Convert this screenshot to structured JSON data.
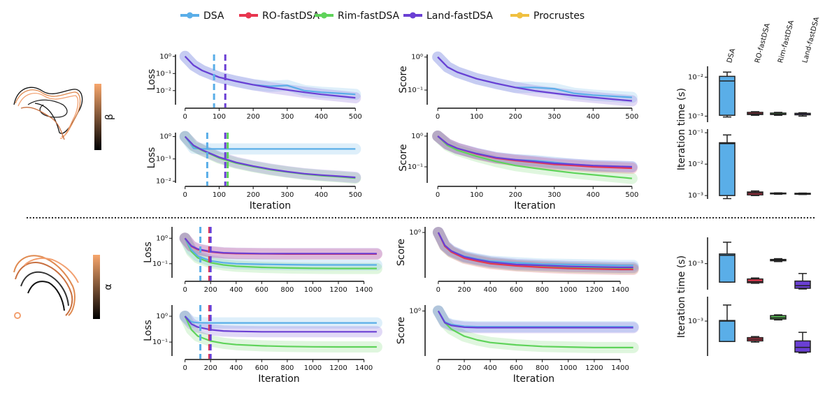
{
  "legend": [
    {
      "name": "DSA",
      "color": "#5aaee8"
    },
    {
      "name": "RO-fastDSA",
      "color": "#e8364f"
    },
    {
      "name": "Rim-fastDSA",
      "color": "#5fd35a"
    },
    {
      "name": "Land-fastDSA",
      "color": "#6a3fd4"
    },
    {
      "name": "Procrustes",
      "color": "#f0c040"
    }
  ],
  "colorbars": [
    {
      "label": "β",
      "colors": [
        "#f7a66c",
        "#000000"
      ]
    },
    {
      "label": "α",
      "colors": [
        "#f7a66c",
        "#000000"
      ]
    }
  ],
  "chart_data": [
    {
      "type": "line",
      "ylabel": "Loss",
      "log_y": true,
      "xlim": [
        -20,
        520
      ],
      "ylim": [
        0.0015,
        1.3
      ],
      "xticks": [
        0,
        100,
        200,
        300,
        400,
        500
      ],
      "yticks": [
        {
          "value": 1,
          "label": "10⁰"
        },
        {
          "value": 0.1,
          "label": "10⁻¹"
        },
        {
          "value": 0.01,
          "label": "10⁻²"
        }
      ],
      "x": [
        0,
        25,
        50,
        100,
        150,
        200,
        250,
        300,
        350,
        400,
        450,
        500
      ],
      "series": [
        {
          "color": "#5aaee8",
          "values": [
            1,
            0.3,
            0.15,
            0.06,
            0.035,
            0.022,
            0.018,
            0.02,
            0.01,
            0.008,
            0.007,
            0.006
          ]
        },
        {
          "color": "#6a3fd4",
          "values": [
            1,
            0.3,
            0.15,
            0.06,
            0.035,
            0.022,
            0.015,
            0.011,
            0.008,
            0.006,
            0.0048,
            0.0038
          ]
        }
      ],
      "vlines": [
        {
          "x": 85,
          "color": "#5aaee8"
        },
        {
          "x": 118,
          "color": "#6a3fd4"
        }
      ]
    },
    {
      "type": "line",
      "ylabel": "Score",
      "log_y": true,
      "xlim": [
        -20,
        520
      ],
      "ylim": [
        0.036,
        1.2
      ],
      "xticks": [
        0,
        100,
        200,
        300,
        400,
        500
      ],
      "yticks": [
        {
          "value": 1,
          "label": "10⁰"
        },
        {
          "value": 0.1,
          "label": "10⁻¹"
        }
      ],
      "x": [
        0,
        25,
        50,
        100,
        150,
        200,
        250,
        300,
        350,
        400,
        450,
        500
      ],
      "series": [
        {
          "color": "#5aaee8",
          "values": [
            1,
            0.5,
            0.35,
            0.22,
            0.16,
            0.12,
            0.12,
            0.11,
            0.08,
            0.07,
            0.065,
            0.06
          ]
        },
        {
          "color": "#6a3fd4",
          "values": [
            1,
            0.5,
            0.35,
            0.22,
            0.16,
            0.12,
            0.095,
            0.08,
            0.068,
            0.06,
            0.053,
            0.047
          ]
        }
      ],
      "vlines": []
    },
    {
      "type": "line",
      "ylabel": "Loss",
      "xlabel": "Iteration",
      "log_y": true,
      "xlim": [
        -20,
        520
      ],
      "ylim": [
        0.0085,
        1.5
      ],
      "xticks": [
        0,
        100,
        200,
        300,
        400,
        500
      ],
      "yticks": [
        {
          "value": 1,
          "label": "10⁰"
        },
        {
          "value": 0.1,
          "label": "10⁻¹"
        },
        {
          "value": 0.01,
          "label": "10⁻²"
        }
      ],
      "x": [
        0,
        25,
        50,
        100,
        150,
        200,
        250,
        300,
        350,
        400,
        450,
        500
      ],
      "series": [
        {
          "color": "#5aaee8",
          "values": [
            1,
            0.3,
            0.28,
            0.28,
            0.28,
            0.28,
            0.28,
            0.28,
            0.28,
            0.28,
            0.28,
            0.28
          ]
        },
        {
          "color": "#5fd35a",
          "values": [
            1,
            0.38,
            0.24,
            0.11,
            0.065,
            0.045,
            0.033,
            0.026,
            0.021,
            0.018,
            0.016,
            0.014
          ]
        },
        {
          "color": "#6a3fd4",
          "values": [
            1,
            0.4,
            0.25,
            0.12,
            0.07,
            0.048,
            0.035,
            0.027,
            0.022,
            0.019,
            0.017,
            0.015
          ]
        }
      ],
      "vlines": [
        {
          "x": 65,
          "color": "#5aaee8"
        },
        {
          "x": 118,
          "color": "#6a3fd4"
        },
        {
          "x": 125,
          "color": "#5fd35a"
        }
      ]
    },
    {
      "type": "line",
      "ylabel": "Score",
      "xlabel": "Iteration",
      "log_y": true,
      "xlim": [
        -20,
        520
      ],
      "ylim": [
        0.03,
        1.3
      ],
      "xticks": [
        0,
        100,
        200,
        300,
        400,
        500
      ],
      "yticks": [
        {
          "value": 1,
          "label": "10⁰"
        },
        {
          "value": 0.1,
          "label": "10⁻¹"
        }
      ],
      "x": [
        0,
        25,
        50,
        100,
        150,
        200,
        250,
        300,
        350,
        400,
        450,
        500
      ],
      "series": [
        {
          "color": "#5fd35a",
          "values": [
            1,
            0.5,
            0.35,
            0.22,
            0.15,
            0.11,
            0.09,
            0.075,
            0.063,
            0.055,
            0.048,
            0.042
          ]
        },
        {
          "color": "#5aaee8",
          "values": [
            1,
            0.55,
            0.4,
            0.27,
            0.2,
            0.17,
            0.16,
            0.14,
            0.12,
            0.11,
            0.105,
            0.1
          ]
        },
        {
          "color": "#e8364f",
          "values": [
            1,
            0.55,
            0.4,
            0.26,
            0.19,
            0.16,
            0.14,
            0.12,
            0.11,
            0.1,
            0.095,
            0.09
          ]
        },
        {
          "color": "#6a3fd4",
          "values": [
            1,
            0.55,
            0.4,
            0.27,
            0.2,
            0.17,
            0.15,
            0.13,
            0.12,
            0.11,
            0.105,
            0.1
          ]
        }
      ],
      "vlines": []
    },
    {
      "type": "line",
      "ylabel": "Loss",
      "log_y": true,
      "xlim": [
        -80,
        1550
      ],
      "ylim": [
        0.028,
        2.8
      ],
      "xticks": [
        0,
        200,
        400,
        600,
        800,
        1000,
        1200,
        1400
      ],
      "yticks": [
        {
          "value": 1,
          "label": "10⁰"
        },
        {
          "value": 0.1,
          "label": "10⁻¹"
        }
      ],
      "x": [
        0,
        50,
        100,
        200,
        300,
        400,
        600,
        800,
        1000,
        1200,
        1400,
        1500
      ],
      "series": [
        {
          "color": "#5fd35a",
          "values": [
            1,
            0.3,
            0.17,
            0.11,
            0.09,
            0.08,
            0.072,
            0.068,
            0.066,
            0.065,
            0.065,
            0.065
          ]
        },
        {
          "color": "#5aaee8",
          "values": [
            1,
            0.35,
            0.2,
            0.13,
            0.11,
            0.1,
            0.095,
            0.092,
            0.09,
            0.09,
            0.09,
            0.09
          ]
        },
        {
          "color": "#e8364f",
          "values": [
            1,
            0.48,
            0.36,
            0.29,
            0.26,
            0.25,
            0.245,
            0.24,
            0.24,
            0.24,
            0.24,
            0.24
          ]
        },
        {
          "color": "#6a3fd4",
          "values": [
            1,
            0.5,
            0.38,
            0.3,
            0.27,
            0.26,
            0.25,
            0.25,
            0.25,
            0.25,
            0.25,
            0.25
          ]
        }
      ],
      "vlines": [
        {
          "x": 120,
          "color": "#5aaee8"
        },
        {
          "x": 190,
          "color": "#e8364f"
        },
        {
          "x": 200,
          "color": "#6a3fd4"
        }
      ]
    },
    {
      "type": "line",
      "ylabel": "Score",
      "log_y": true,
      "xlim": [
        -80,
        1550
      ],
      "ylim": [
        0.165,
        1.25
      ],
      "xticks": [
        0,
        200,
        400,
        600,
        800,
        1000,
        1200,
        1400
      ],
      "yticks": [
        {
          "value": 1,
          "label": "10⁰"
        }
      ],
      "x": [
        0,
        50,
        100,
        200,
        300,
        400,
        600,
        800,
        1000,
        1200,
        1400,
        1500
      ],
      "series": [
        {
          "color": "#5fd35a",
          "values": [
            1,
            0.58,
            0.46,
            0.37,
            0.33,
            0.3,
            0.27,
            0.26,
            0.25,
            0.245,
            0.24,
            0.24
          ]
        },
        {
          "color": "#5aaee8",
          "values": [
            1,
            0.6,
            0.48,
            0.39,
            0.35,
            0.32,
            0.3,
            0.285,
            0.28,
            0.275,
            0.27,
            0.27
          ]
        },
        {
          "color": "#e8364f",
          "values": [
            1,
            0.58,
            0.46,
            0.36,
            0.32,
            0.29,
            0.265,
            0.25,
            0.24,
            0.235,
            0.23,
            0.23
          ]
        },
        {
          "color": "#6a3fd4",
          "values": [
            1,
            0.6,
            0.48,
            0.38,
            0.34,
            0.31,
            0.28,
            0.27,
            0.26,
            0.255,
            0.25,
            0.25
          ]
        }
      ],
      "vlines": []
    },
    {
      "type": "line",
      "ylabel": "Loss",
      "xlabel": "Iteration",
      "log_y": true,
      "xlim": [
        -80,
        1550
      ],
      "ylim": [
        0.029,
        2.7
      ],
      "xticks": [
        0,
        200,
        400,
        600,
        800,
        1000,
        1200,
        1400
      ],
      "yticks": [
        {
          "value": 1,
          "label": "10⁰"
        },
        {
          "value": 0.1,
          "label": "10⁻¹"
        }
      ],
      "x": [
        0,
        50,
        100,
        200,
        300,
        400,
        600,
        800,
        1000,
        1200,
        1400,
        1500
      ],
      "series": [
        {
          "color": "#5fd35a",
          "values": [
            1,
            0.3,
            0.17,
            0.11,
            0.09,
            0.08,
            0.072,
            0.068,
            0.066,
            0.065,
            0.065,
            0.065
          ]
        },
        {
          "color": "#5aaee8",
          "values": [
            1,
            0.6,
            0.56,
            0.55,
            0.55,
            0.55,
            0.55,
            0.55,
            0.55,
            0.55,
            0.55,
            0.55
          ]
        },
        {
          "color": "#6a3fd4",
          "values": [
            1,
            0.5,
            0.38,
            0.3,
            0.27,
            0.26,
            0.25,
            0.25,
            0.25,
            0.25,
            0.25,
            0.25
          ]
        }
      ],
      "vlines": [
        {
          "x": 120,
          "color": "#5aaee8"
        },
        {
          "x": 190,
          "color": "#e8364f"
        },
        {
          "x": 200,
          "color": "#6a3fd4"
        }
      ]
    },
    {
      "type": "line",
      "ylabel": "Score",
      "xlabel": "Iteration",
      "log_y": true,
      "xlim": [
        -80,
        1550
      ],
      "ylim": [
        0.138,
        1.3
      ],
      "xticks": [
        0,
        200,
        400,
        600,
        800,
        1000,
        1200,
        1400
      ],
      "yticks": [
        {
          "value": 1,
          "label": "10⁰"
        }
      ],
      "x": [
        0,
        50,
        100,
        200,
        300,
        400,
        600,
        800,
        1000,
        1200,
        1400,
        1500
      ],
      "series": [
        {
          "color": "#5fd35a",
          "values": [
            1,
            0.6,
            0.45,
            0.33,
            0.28,
            0.25,
            0.225,
            0.21,
            0.205,
            0.2,
            0.2,
            0.2
          ]
        },
        {
          "color": "#5aaee8",
          "values": [
            1,
            0.62,
            0.55,
            0.51,
            0.5,
            0.5,
            0.5,
            0.5,
            0.5,
            0.5,
            0.5,
            0.5
          ]
        },
        {
          "color": "#6a3fd4",
          "values": [
            1,
            0.6,
            0.53,
            0.49,
            0.48,
            0.48,
            0.48,
            0.48,
            0.48,
            0.48,
            0.48,
            0.48
          ]
        }
      ],
      "vlines": []
    },
    {
      "type": "box",
      "ylabel": "Iteration time (s)",
      "log_y": true,
      "ylim": [
        0.0007,
        0.019
      ],
      "categories": [
        "DSA",
        "RO-fastDSA",
        "Rim-fastDSA",
        "Land-fastDSA"
      ],
      "yticks": [
        {
          "value": 0.01,
          "label": "10⁻²"
        },
        {
          "value": 0.001,
          "label": "10⁻³"
        }
      ],
      "boxes": [
        {
          "color": "#5aaee8",
          "min": 0.00095,
          "q1": 0.00105,
          "median": 0.008,
          "q3": 0.0105,
          "max": 0.0135
        },
        {
          "color": "#e8364f",
          "min": 0.00105,
          "q1": 0.0011,
          "median": 0.00115,
          "q3": 0.00125,
          "max": 0.0013
        },
        {
          "color": "#5fd35a",
          "min": 0.00105,
          "q1": 0.0011,
          "median": 0.00112,
          "q3": 0.0012,
          "max": 0.00125
        },
        {
          "color": "#6a3fd4",
          "min": 0.001,
          "q1": 0.00108,
          "median": 0.0011,
          "q3": 0.00118,
          "max": 0.00122
        }
      ]
    },
    {
      "type": "box",
      "log_y": true,
      "ylim": [
        0.00078,
        0.13
      ],
      "yticks": [
        {
          "value": 0.1,
          "label": "10⁻¹"
        },
        {
          "value": 0.01,
          "label": "10⁻²"
        },
        {
          "value": 0.001,
          "label": "10⁻³"
        }
      ],
      "boxes": [
        {
          "color": "#5aaee8",
          "min": 0.0008,
          "q1": 0.001,
          "median": 0.045,
          "q3": 0.048,
          "max": 0.085
        },
        {
          "color": "#e8364f",
          "min": 0.001,
          "q1": 0.00105,
          "median": 0.0012,
          "q3": 0.0013,
          "max": 0.0014
        },
        {
          "color": "#5fd35a",
          "min": 0.0011,
          "q1": 0.00113,
          "median": 0.00115,
          "q3": 0.0012,
          "max": 0.00122
        },
        {
          "color": "#6a3fd4",
          "min": 0.00108,
          "q1": 0.0011,
          "median": 0.00113,
          "q3": 0.00118,
          "max": 0.0012
        }
      ]
    },
    {
      "type": "box",
      "ylabel": "Iteration time (s)",
      "log_y": true,
      "ylim": [
        0.00042,
        0.0024
      ],
      "yticks": [
        {
          "value": 0.001,
          "label": "10⁻³"
        }
      ],
      "boxes": [
        {
          "color": "#5aaee8",
          "min": 0.00054,
          "q1": 0.00054,
          "median": 0.00132,
          "q3": 0.00138,
          "max": 0.00204
        },
        {
          "color": "#e8364f",
          "min": 0.00052,
          "q1": 0.00053,
          "median": 0.00055,
          "q3": 0.0006,
          "max": 0.00062
        },
        {
          "color": "#5fd35a",
          "min": 0.00107,
          "q1": 0.0011,
          "median": 0.00112,
          "q3": 0.00115,
          "max": 0.00118
        },
        {
          "color": "#6a3fd4",
          "min": 0.00043,
          "q1": 0.00044,
          "median": 0.00048,
          "q3": 0.00056,
          "max": 0.00072
        }
      ]
    },
    {
      "type": "box",
      "log_y": true,
      "ylim": [
        0.000316,
        0.00224
      ],
      "yticks": [
        {
          "value": 0.001,
          "label": "10⁻³"
        }
      ],
      "boxes": [
        {
          "color": "#5aaee8",
          "min": 0.00051,
          "q1": 0.00051,
          "median": 0.001,
          "q3": 0.00102,
          "max": 0.0017
        },
        {
          "color": "#e8364f",
          "min": 0.0005,
          "q1": 0.00052,
          "median": 0.00055,
          "q3": 0.00058,
          "max": 0.0006
        },
        {
          "color": "#5fd35a",
          "min": 0.00104,
          "q1": 0.00107,
          "median": 0.00112,
          "q3": 0.0012,
          "max": 0.00123
        },
        {
          "color": "#6a3fd4",
          "min": 0.00035,
          "q1": 0.00036,
          "median": 0.00042,
          "q3": 0.00052,
          "max": 0.00069
        }
      ]
    }
  ]
}
